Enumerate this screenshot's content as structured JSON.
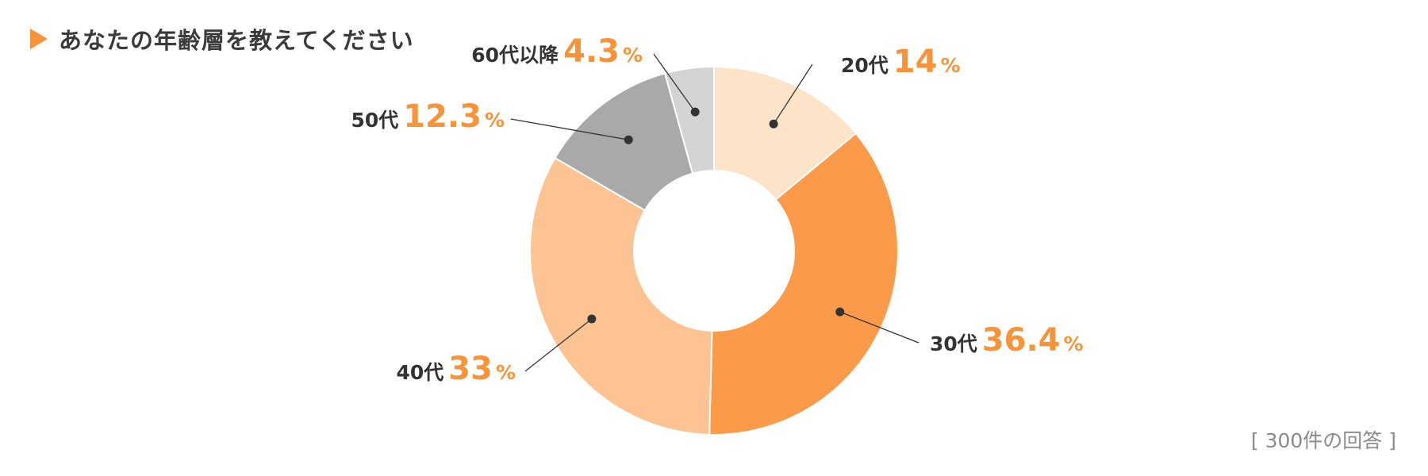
{
  "title": "あなたの年齢層を教えてください",
  "footnote": "[ 300件の回答 ]",
  "colors": {
    "accent": "#f7943a",
    "leader": "#333333",
    "slice_border": "#ffffff"
  },
  "chart_data": {
    "type": "pie",
    "donut": true,
    "start_angle_deg": 0,
    "direction": "clockwise",
    "categories": [
      "20代",
      "30代",
      "40代",
      "50代",
      "60代以降"
    ],
    "values": [
      14,
      36.4,
      33,
      12.3,
      4.3
    ],
    "value_labels": [
      "14",
      "36.4",
      "33",
      "12.3",
      "4.3"
    ],
    "unit": "%",
    "colors": [
      "#fde3c8",
      "#fb9a48",
      "#fdc393",
      "#a9a9a9",
      "#d4d4d4"
    ],
    "label_side": [
      "right",
      "right",
      "left",
      "left",
      "left"
    ],
    "title": "あなたの年齢層を教えてください"
  }
}
